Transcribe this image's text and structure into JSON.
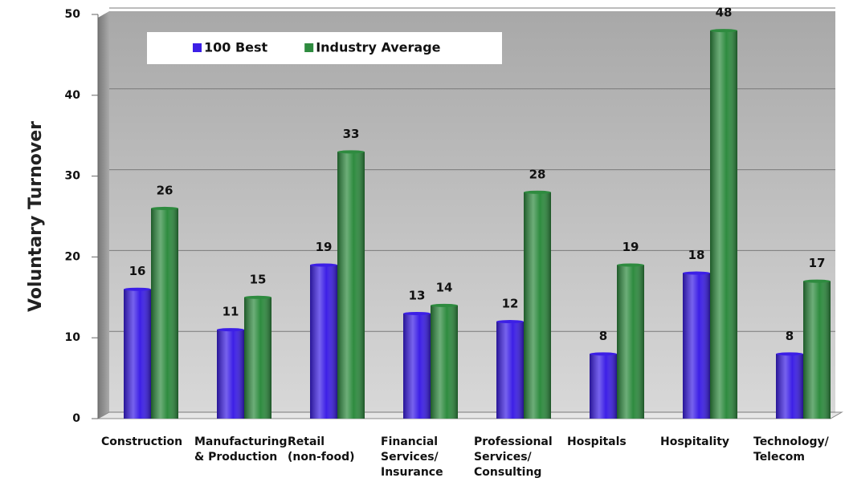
{
  "chart_data": {
    "type": "bar",
    "y_label": "Voluntary Turnover",
    "categories": [
      "Construction",
      "Manufacturing\n& Production",
      "Retail\n(non-food)",
      "Financial\nServices/\nInsurance",
      "Professional\nServices/\nConsulting",
      "Hospitals",
      "Hospitality",
      "Technology/\nTelecom"
    ],
    "series": [
      {
        "name": "100 Best",
        "color": "#3c1fe6",
        "values": [
          16,
          11,
          19,
          13,
          12,
          8,
          18,
          8
        ]
      },
      {
        "name": "Industry Average",
        "color": "#2e8b3f",
        "values": [
          26,
          15,
          33,
          14,
          28,
          19,
          48,
          17
        ]
      }
    ],
    "ylim": [
      0,
      50
    ],
    "yticks": [
      0,
      10,
      20,
      30,
      40,
      50
    ],
    "grid": true,
    "legend": "top"
  }
}
